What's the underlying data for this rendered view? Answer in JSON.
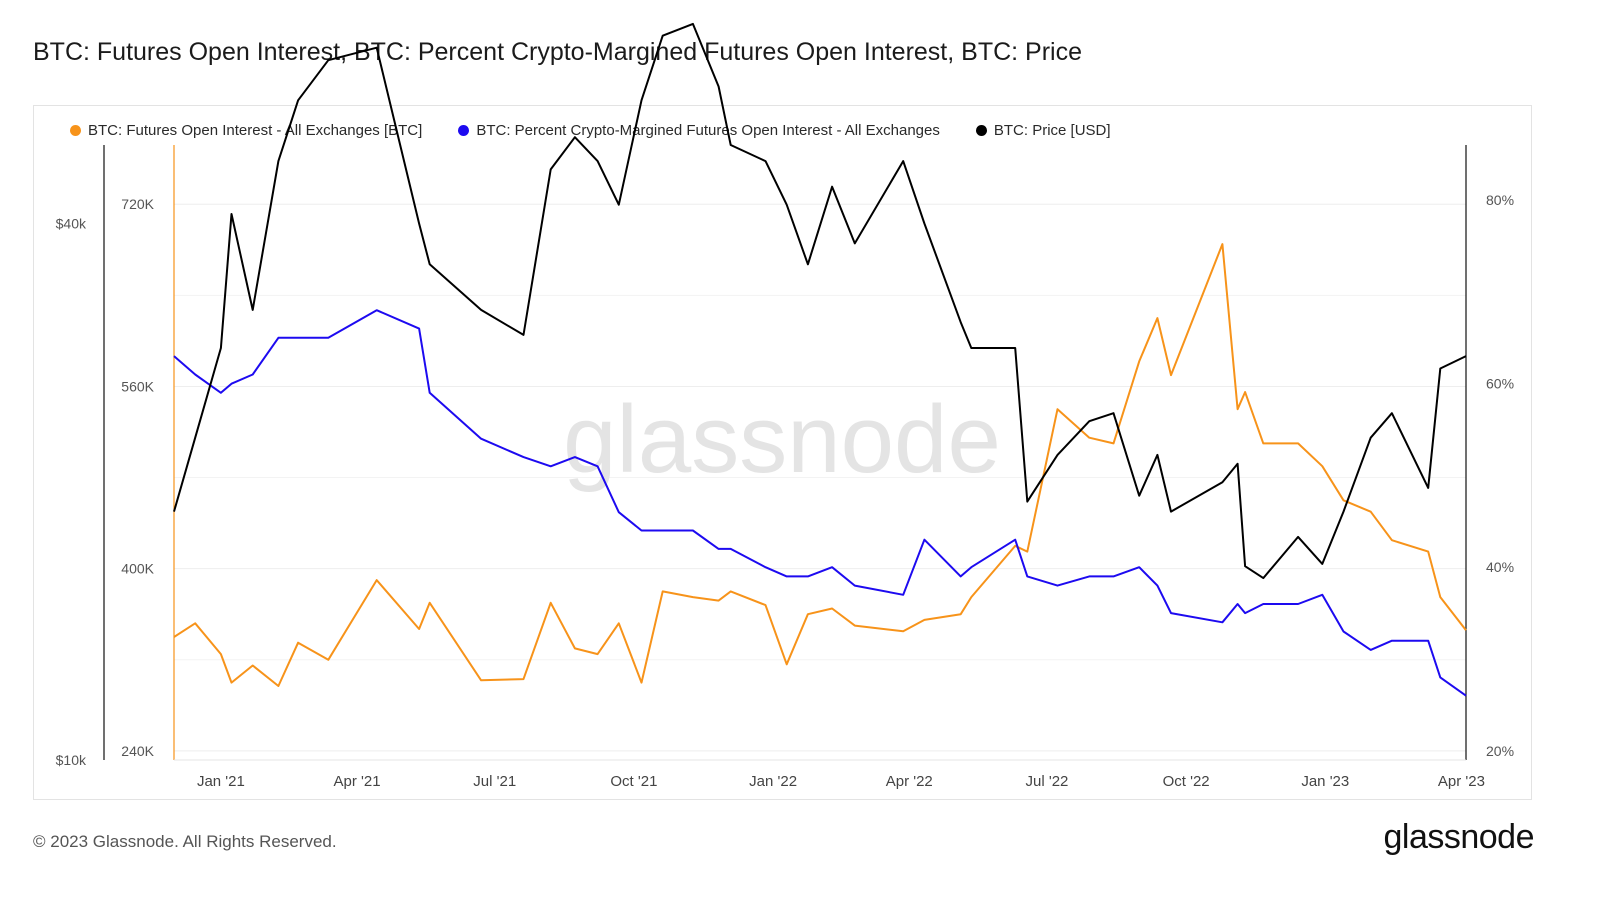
{
  "title": "BTC: Futures Open Interest, BTC: Percent Crypto-Margined Futures Open Interest, BTC: Price",
  "footer": "© 2023 Glassnode. All Rights Reserved.",
  "brand": "glassnode",
  "watermark": "glassnode",
  "chart_data": {
    "type": "line",
    "grid": true,
    "legend_position": "top-left",
    "x": [
      "2020-12-01",
      "2020-12-15",
      "2021-01-01",
      "2021-01-08",
      "2021-01-22",
      "2021-02-08",
      "2021-02-21",
      "2021-03-13",
      "2021-04-14",
      "2021-05-12",
      "2021-05-19",
      "2021-06-22",
      "2021-07-20",
      "2021-08-07",
      "2021-08-23",
      "2021-09-07",
      "2021-09-21",
      "2021-10-06",
      "2021-10-20",
      "2021-11-09",
      "2021-11-26",
      "2021-12-04",
      "2021-12-27",
      "2022-01-10",
      "2022-01-24",
      "2022-02-09",
      "2022-02-24",
      "2022-03-28",
      "2022-04-11",
      "2022-05-05",
      "2022-05-12",
      "2022-06-10",
      "2022-06-18",
      "2022-07-08",
      "2022-07-29",
      "2022-08-14",
      "2022-08-31",
      "2022-09-12",
      "2022-09-21",
      "2022-10-25",
      "2022-11-04",
      "2022-11-09",
      "2022-11-21",
      "2022-12-14",
      "2022-12-30",
      "2023-01-13",
      "2023-01-31",
      "2023-02-14",
      "2023-03-10",
      "2023-03-18",
      "2023-04-04"
    ],
    "x_ticks": [
      "Jan '21",
      "Apr '21",
      "Jul '21",
      "Oct '21",
      "Jan '22",
      "Apr '22",
      "Jul '22",
      "Oct '22",
      "Jan '23",
      "Apr '23"
    ],
    "series": [
      {
        "name": "BTC: Futures Open Interest - All Exchanges [BTC]",
        "color": "#f7931a",
        "axis": "left-inner",
        "values": [
          340000,
          352000,
          325000,
          300000,
          315000,
          297000,
          335000,
          320000,
          390000,
          347000,
          370000,
          302000,
          303000,
          370000,
          330000,
          325000,
          352000,
          300000,
          380000,
          375000,
          372000,
          380000,
          368000,
          316000,
          360000,
          365000,
          350000,
          345000,
          355000,
          360000,
          375000,
          420000,
          415000,
          540000,
          515000,
          510000,
          582000,
          620000,
          570000,
          685000,
          540000,
          555000,
          510000,
          510000,
          490000,
          460000,
          450000,
          425000,
          415000,
          375000,
          346000
        ]
      },
      {
        "name": "BTC: Percent Crypto-Margined Futures Open Interest - All Exchanges",
        "color": "#1d0af0",
        "axis": "right",
        "values": [
          63,
          61,
          59,
          60,
          61,
          65,
          65,
          65,
          68,
          66,
          59,
          54,
          52,
          51,
          52,
          51,
          46,
          44,
          44,
          44,
          42,
          42,
          40,
          39,
          39,
          40,
          38,
          37,
          43,
          39,
          40,
          43,
          39,
          38,
          39,
          39,
          40,
          38,
          35,
          34,
          36,
          35,
          36,
          36,
          37,
          33,
          31,
          32,
          32,
          28,
          26
        ]
      },
      {
        "name": "BTC: Price [USD]",
        "color": "#000000",
        "axis": "left-outer",
        "values": [
          19000,
          23000,
          29000,
          41000,
          32000,
          47000,
          55000,
          61000,
          63000,
          40000,
          36000,
          32000,
          30000,
          46000,
          50000,
          47000,
          42000,
          55000,
          65000,
          67000,
          57000,
          49000,
          47000,
          42000,
          36000,
          44000,
          38000,
          47000,
          40000,
          31000,
          29000,
          29000,
          19500,
          22000,
          24000,
          24500,
          19800,
          22000,
          19000,
          20500,
          21500,
          16500,
          16000,
          17800,
          16600,
          19000,
          23000,
          24500,
          20200,
          27500,
          28400
        ]
      }
    ],
    "axes": {
      "left_outer": {
        "label": "",
        "scale": "log",
        "ticks": [
          "$10k",
          "$40k"
        ],
        "tick_values": [
          10000,
          40000
        ],
        "range": [
          10000,
          49000
        ]
      },
      "left_inner": {
        "label": "",
        "ticks": [
          "240K",
          "400K",
          "560K",
          "720K"
        ],
        "tick_values": [
          240000,
          400000,
          560000,
          720000
        ],
        "range": [
          232000,
          772000
        ]
      },
      "right": {
        "label": "",
        "ticks": [
          "20%",
          "40%",
          "60%",
          "80%"
        ],
        "tick_values": [
          20,
          40,
          60,
          80
        ],
        "range": [
          19,
          86
        ]
      }
    }
  }
}
